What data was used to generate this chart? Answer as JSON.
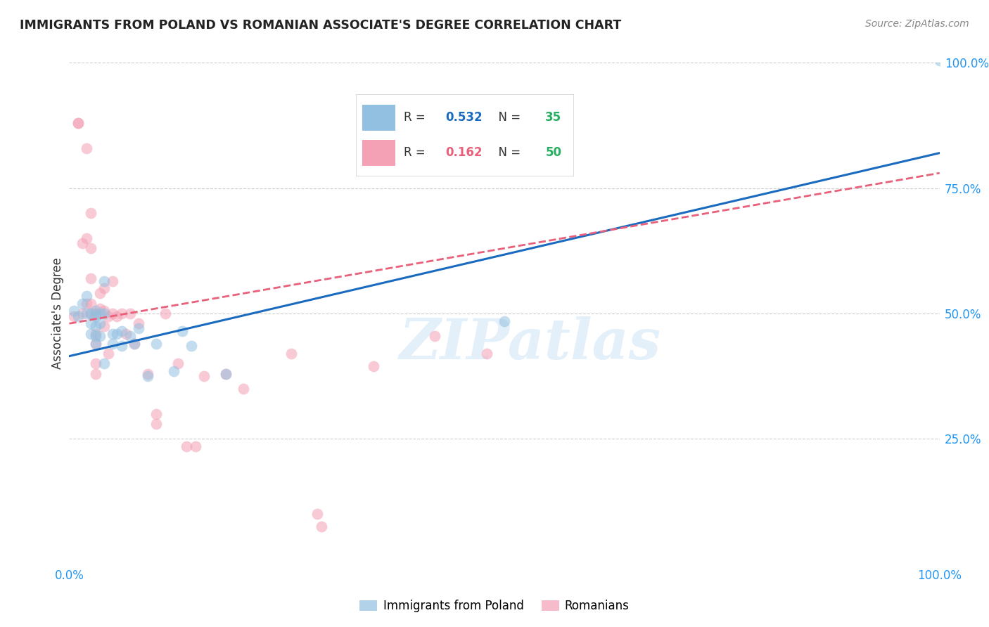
{
  "title": "IMMIGRANTS FROM POLAND VS ROMANIAN ASSOCIATE'S DEGREE CORRELATION CHART",
  "source": "Source: ZipAtlas.com",
  "ylabel": "Associate's Degree",
  "xlim": [
    0,
    1
  ],
  "ylim": [
    0,
    1
  ],
  "ytick_labels": [
    "25.0%",
    "50.0%",
    "75.0%",
    "100.0%"
  ],
  "ytick_values": [
    0.25,
    0.5,
    0.75,
    1.0
  ],
  "poland_R": 0.532,
  "poland_N": 35,
  "romanian_R": 0.162,
  "romanian_N": 50,
  "poland_color": "#92c0e0",
  "romanian_color": "#f4a0b5",
  "poland_line_color": "#1a6bbf",
  "romanian_line_color": "#e8607a",
  "watermark": "ZIPatlas",
  "poland_line_x0": 0.0,
  "poland_line_y0": 0.415,
  "poland_line_x1": 1.0,
  "poland_line_y1": 0.82,
  "romanian_line_x0": 0.0,
  "romanian_line_y0": 0.48,
  "romanian_line_x1": 1.0,
  "romanian_line_y1": 0.78,
  "poland_x": [
    0.005,
    0.01,
    0.015,
    0.02,
    0.02,
    0.025,
    0.025,
    0.025,
    0.03,
    0.03,
    0.03,
    0.03,
    0.03,
    0.035,
    0.035,
    0.035,
    0.04,
    0.04,
    0.04,
    0.05,
    0.05,
    0.055,
    0.06,
    0.06,
    0.07,
    0.075,
    0.08,
    0.09,
    0.1,
    0.12,
    0.13,
    0.14,
    0.18,
    0.5,
    1.0
  ],
  "poland_y": [
    0.505,
    0.495,
    0.52,
    0.535,
    0.5,
    0.5,
    0.48,
    0.46,
    0.505,
    0.495,
    0.475,
    0.455,
    0.44,
    0.5,
    0.48,
    0.455,
    0.565,
    0.5,
    0.4,
    0.46,
    0.44,
    0.46,
    0.465,
    0.435,
    0.455,
    0.44,
    0.47,
    0.375,
    0.44,
    0.385,
    0.465,
    0.435,
    0.38,
    0.485,
    1.005
  ],
  "romanian_x": [
    0.005,
    0.01,
    0.01,
    0.015,
    0.015,
    0.02,
    0.02,
    0.02,
    0.025,
    0.025,
    0.025,
    0.025,
    0.025,
    0.03,
    0.03,
    0.03,
    0.03,
    0.03,
    0.03,
    0.035,
    0.035,
    0.04,
    0.04,
    0.04,
    0.045,
    0.045,
    0.05,
    0.05,
    0.055,
    0.06,
    0.065,
    0.07,
    0.075,
    0.08,
    0.09,
    0.1,
    0.1,
    0.11,
    0.125,
    0.135,
    0.145,
    0.155,
    0.18,
    0.2,
    0.255,
    0.285,
    0.29,
    0.35,
    0.42,
    0.48
  ],
  "romanian_y": [
    0.495,
    0.88,
    0.88,
    0.64,
    0.5,
    0.83,
    0.65,
    0.52,
    0.7,
    0.63,
    0.57,
    0.52,
    0.5,
    0.5,
    0.5,
    0.46,
    0.44,
    0.4,
    0.38,
    0.54,
    0.51,
    0.55,
    0.505,
    0.475,
    0.495,
    0.42,
    0.565,
    0.5,
    0.495,
    0.5,
    0.46,
    0.5,
    0.44,
    0.48,
    0.38,
    0.3,
    0.28,
    0.5,
    0.4,
    0.235,
    0.235,
    0.375,
    0.38,
    0.35,
    0.42,
    0.1,
    0.075,
    0.395,
    0.455,
    0.42
  ]
}
